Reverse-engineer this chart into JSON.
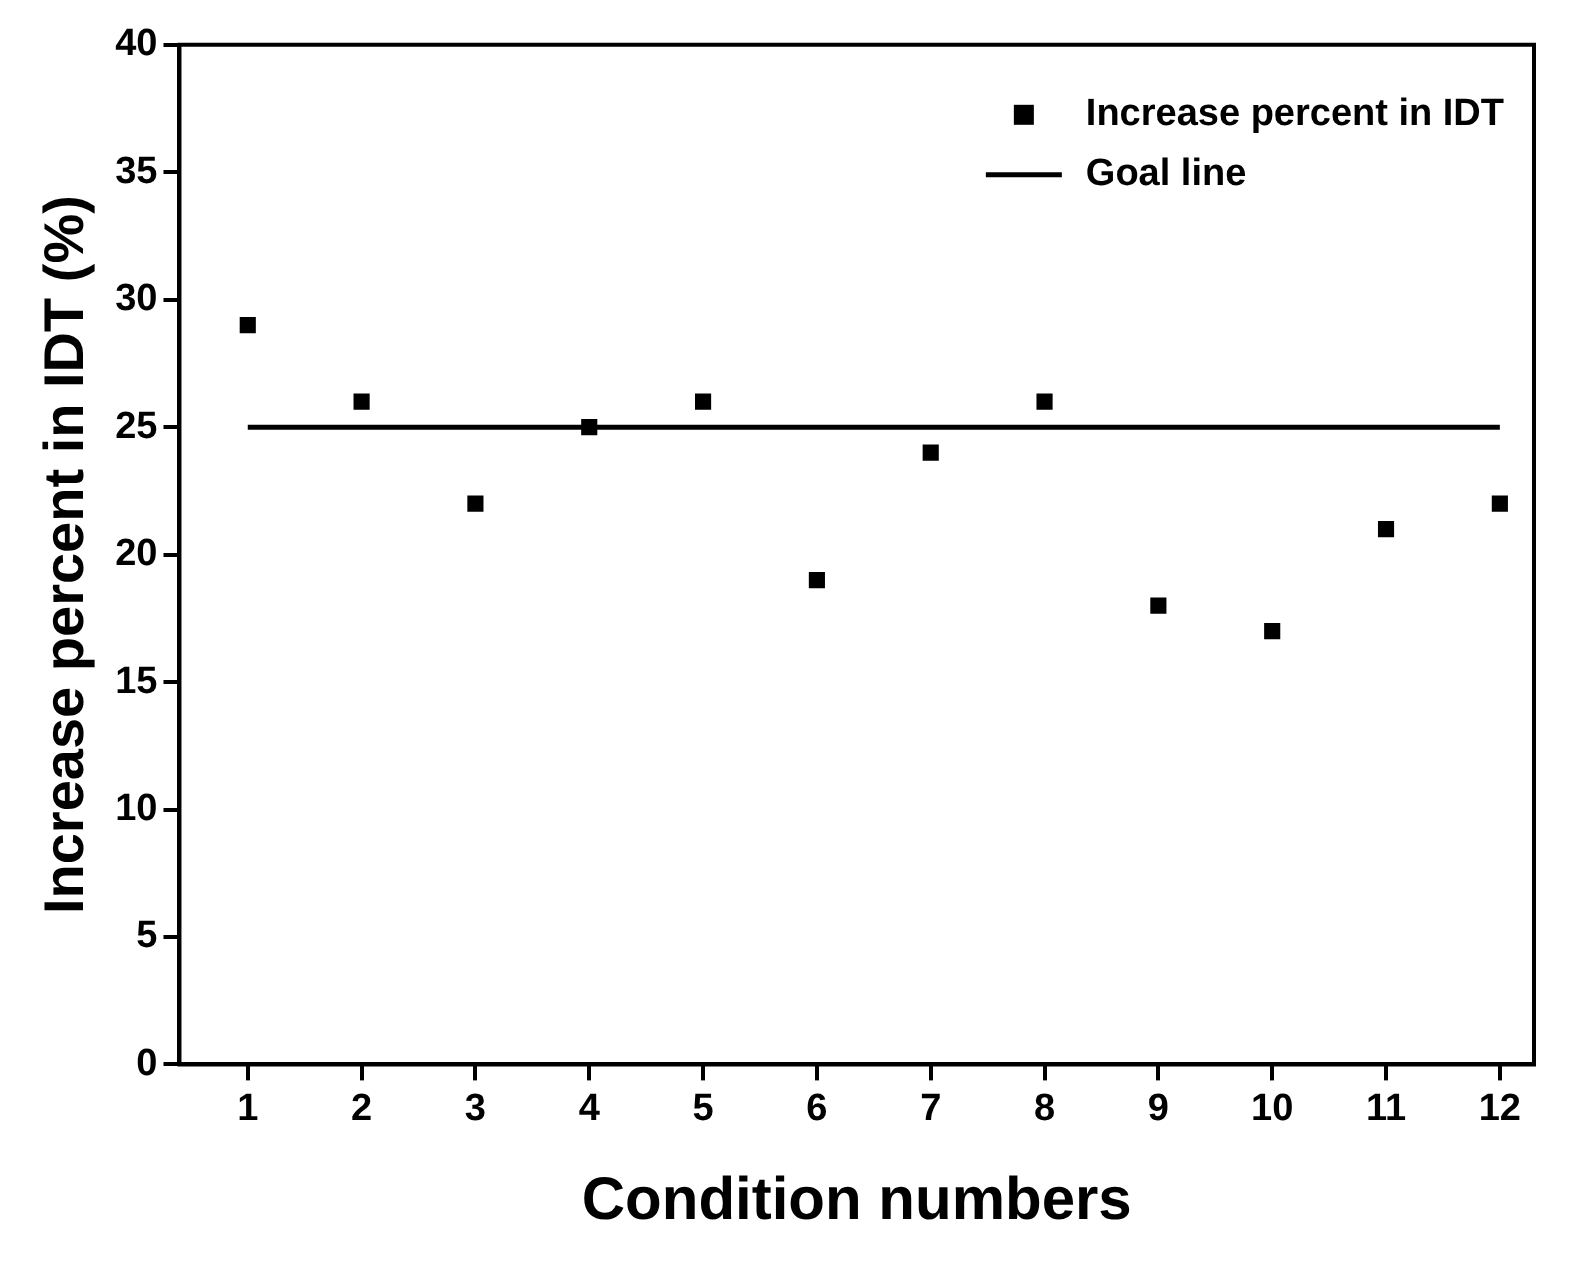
{
  "chart_data": {
    "type": "scatter",
    "xlabel": "Condition numbers",
    "ylabel": "Increase percent in IDT (%)",
    "x": [
      1,
      2,
      3,
      4,
      5,
      6,
      7,
      8,
      9,
      10,
      11,
      12
    ],
    "series": [
      {
        "name": "Increase percent in IDT",
        "type": "scatter",
        "color": "#000000",
        "marker": "square",
        "values": [
          29,
          26,
          22,
          25,
          26,
          19,
          24,
          26,
          18,
          17,
          21,
          22
        ]
      },
      {
        "name": "Goal line",
        "type": "line",
        "color": "#000000",
        "line_style": "solid",
        "marker": "none",
        "x": [
          1,
          12
        ],
        "values": [
          25,
          25
        ]
      }
    ],
    "xlim": [
      0.4,
      12.3
    ],
    "xticks": [
      1,
      2,
      3,
      4,
      5,
      6,
      7,
      8,
      9,
      10,
      11,
      12
    ],
    "ylim": [
      0,
      40
    ],
    "yticks": [
      0,
      5,
      10,
      15,
      20,
      25,
      30,
      35,
      40
    ],
    "grid": false,
    "legend": "top right"
  }
}
